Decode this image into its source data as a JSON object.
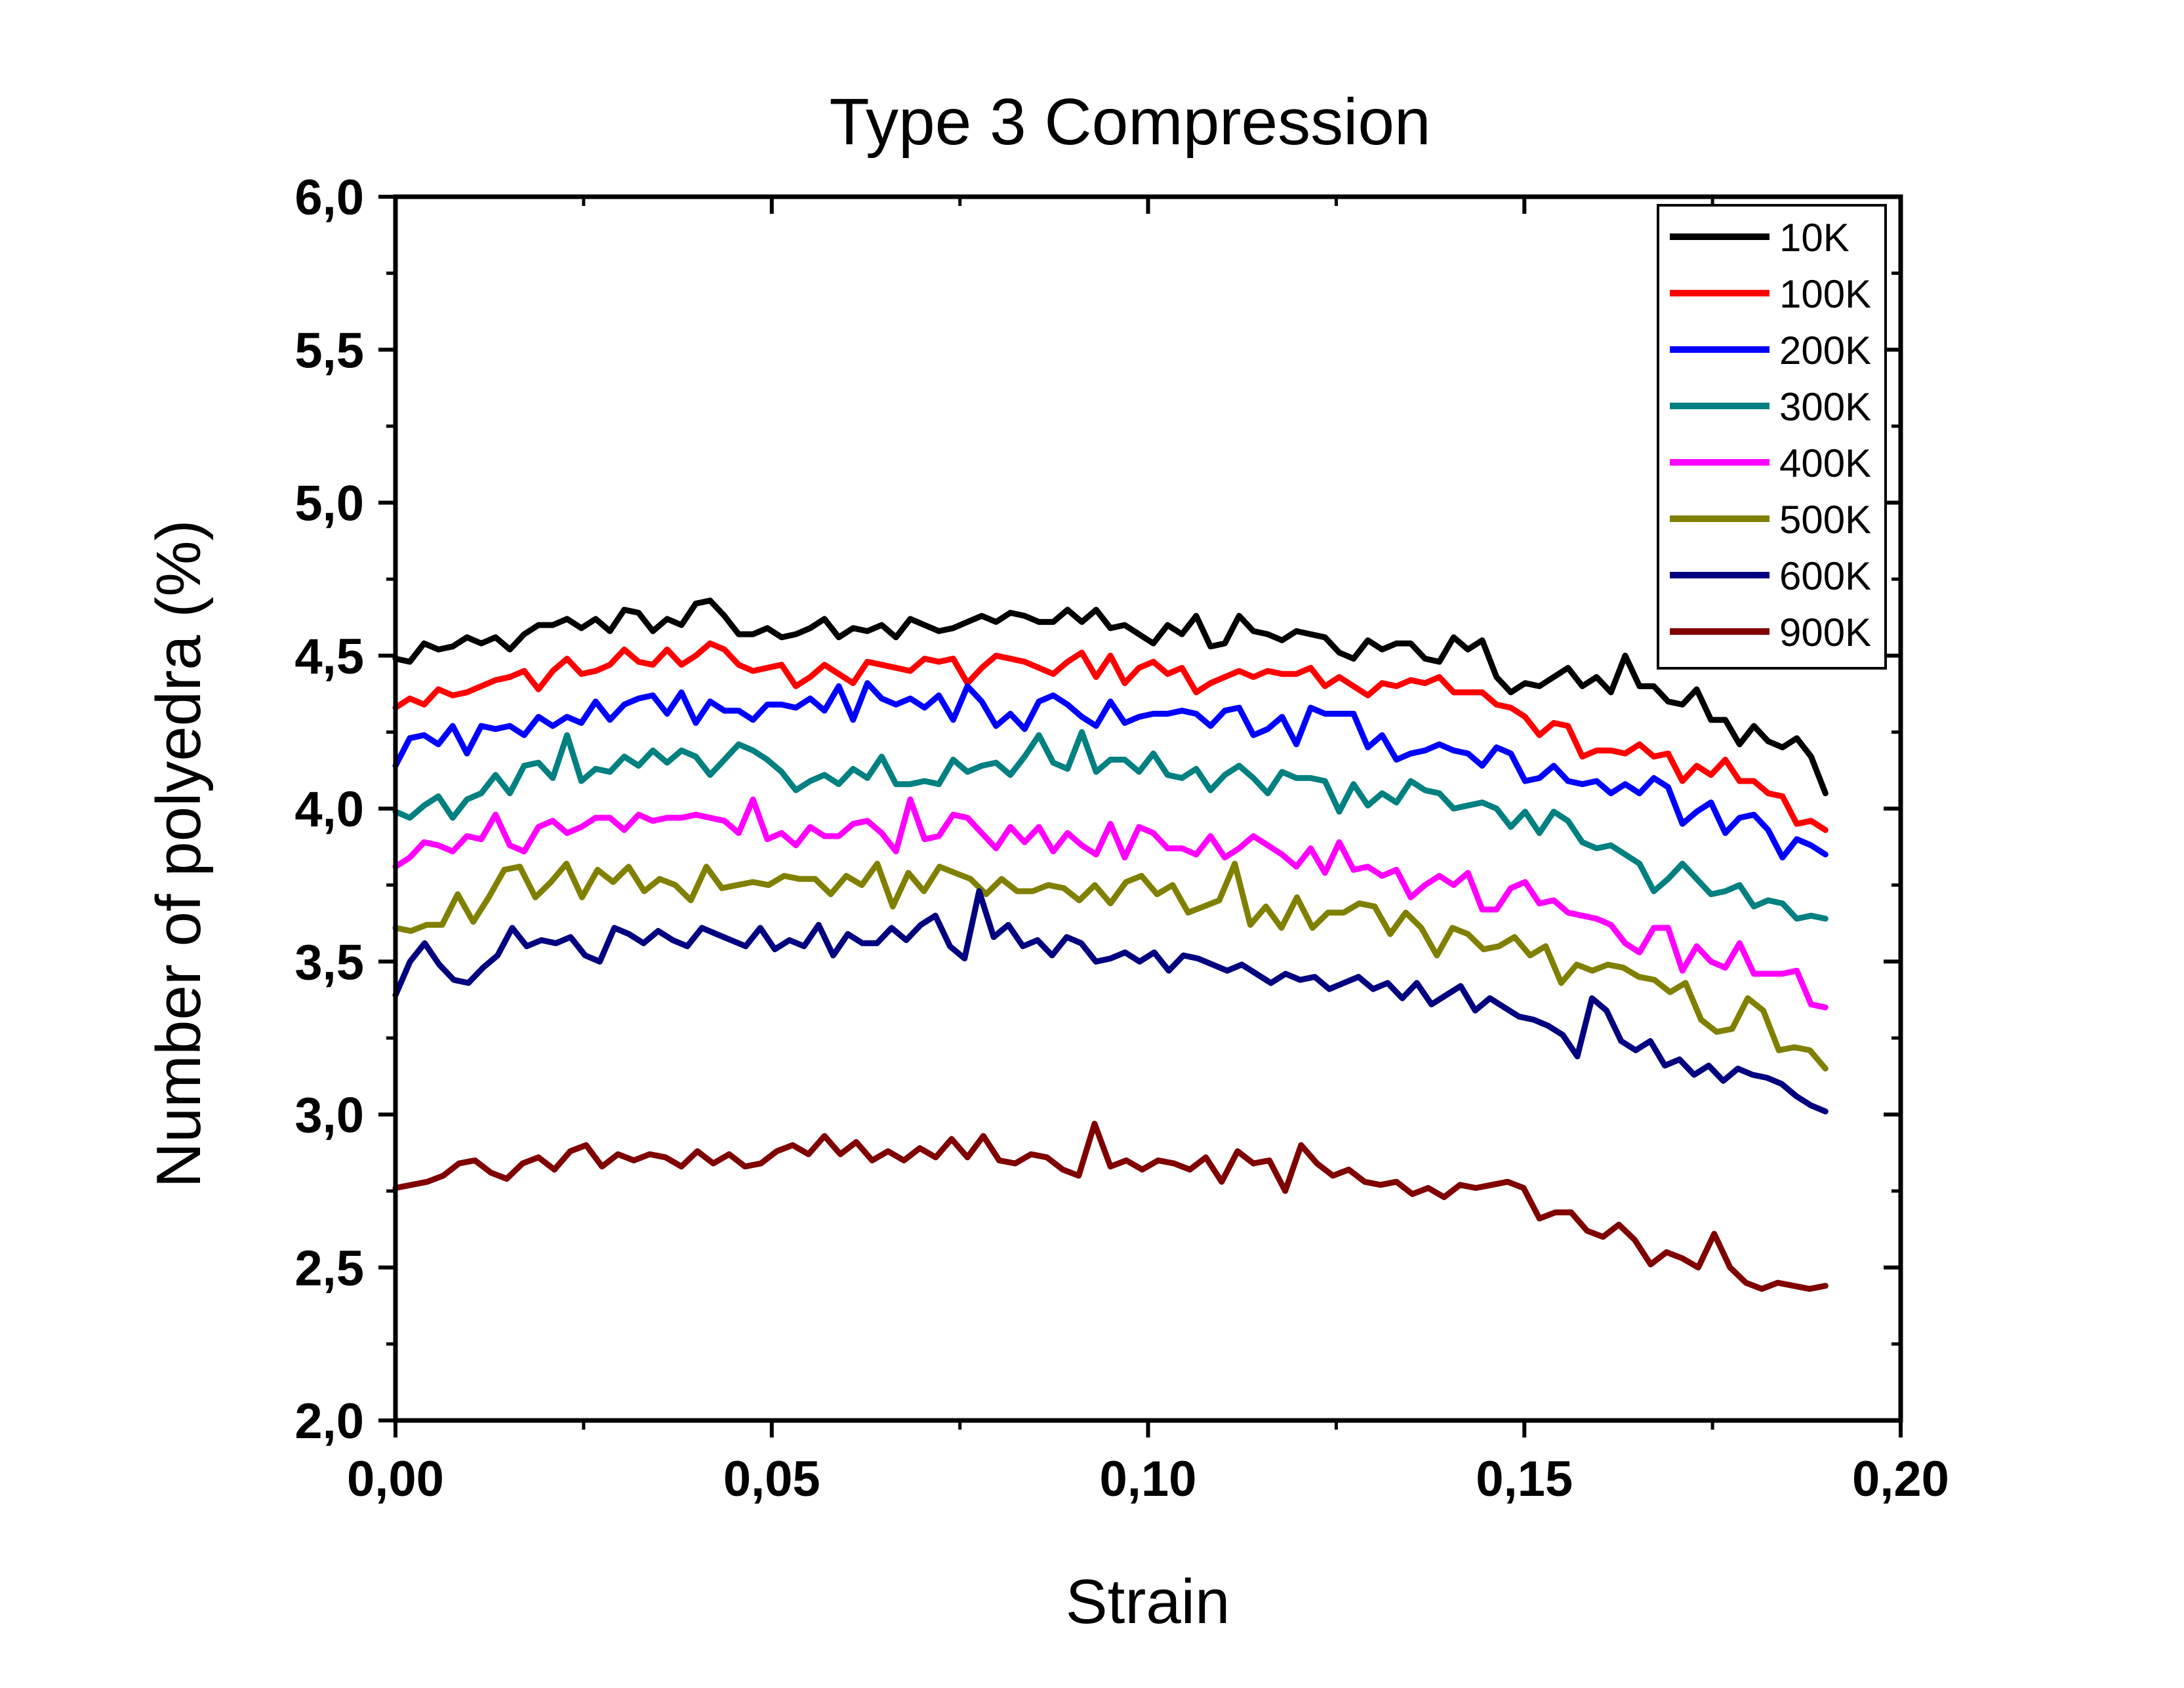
{
  "chart_data": {
    "type": "line",
    "title": "Type 3 Compression",
    "xlabel": "Strain",
    "ylabel": "Number of polyedra (%)",
    "xlim": [
      0,
      0.2
    ],
    "ylim": [
      2.0,
      6.0
    ],
    "xticks": [
      "0,00",
      "0,05",
      "0,10",
      "0,15",
      "0,20"
    ],
    "yticks": [
      "2,0",
      "2,5",
      "3,0",
      "3,5",
      "4,0",
      "4,5",
      "5,0",
      "5,5",
      "6,0"
    ],
    "grid": false,
    "legend_position": "top-right",
    "x_start": 0.0,
    "x_step": 0.001,
    "series": [
      {
        "name": "10K",
        "color": "#000000",
        "values": [
          4.49,
          4.48,
          4.54,
          4.52,
          4.53,
          4.56,
          4.54,
          4.56,
          4.52,
          4.57,
          4.6,
          4.6,
          4.62,
          4.59,
          4.62,
          4.58,
          4.65,
          4.64,
          4.58,
          4.62,
          4.6,
          4.67,
          4.68,
          4.63,
          4.57,
          4.57,
          4.59,
          4.56,
          4.57,
          4.59,
          4.62,
          4.56,
          4.59,
          4.58,
          4.6,
          4.56,
          4.62,
          4.6,
          4.58,
          4.59,
          4.61,
          4.63,
          4.61,
          4.64,
          4.63,
          4.61,
          4.61,
          4.65,
          4.61,
          4.65,
          4.59,
          4.6,
          4.57,
          4.54,
          4.6,
          4.57,
          4.63,
          4.53,
          4.54,
          4.63,
          4.58,
          4.57,
          4.55,
          4.58,
          4.57,
          4.56,
          4.51,
          4.49,
          4.55,
          4.52,
          4.54,
          4.54,
          4.49,
          4.48,
          4.56,
          4.52,
          4.55,
          4.43,
          4.38,
          4.41,
          4.4,
          4.43,
          4.46,
          4.4,
          4.43,
          4.38,
          4.5,
          4.4,
          4.4,
          4.35,
          4.34,
          4.39,
          4.29,
          4.29,
          4.21,
          4.27,
          4.22,
          4.2,
          4.23,
          4.17,
          4.05
        ]
      },
      {
        "name": "100K",
        "color": "#ff0000",
        "values": [
          4.33,
          4.36,
          4.34,
          4.39,
          4.37,
          4.38,
          4.4,
          4.42,
          4.43,
          4.45,
          4.39,
          4.45,
          4.49,
          4.44,
          4.45,
          4.47,
          4.52,
          4.48,
          4.47,
          4.52,
          4.47,
          4.5,
          4.54,
          4.52,
          4.47,
          4.45,
          4.46,
          4.47,
          4.4,
          4.43,
          4.47,
          4.44,
          4.41,
          4.48,
          4.47,
          4.46,
          4.45,
          4.49,
          4.48,
          4.49,
          4.41,
          4.46,
          4.5,
          4.49,
          4.48,
          4.46,
          4.44,
          4.48,
          4.51,
          4.43,
          4.5,
          4.41,
          4.46,
          4.48,
          4.44,
          4.46,
          4.38,
          4.41,
          4.43,
          4.45,
          4.43,
          4.45,
          4.44,
          4.44,
          4.46,
          4.4,
          4.43,
          4.4,
          4.37,
          4.41,
          4.4,
          4.42,
          4.41,
          4.43,
          4.38,
          4.38,
          4.38,
          4.34,
          4.33,
          4.3,
          4.24,
          4.28,
          4.27,
          4.17,
          4.19,
          4.19,
          4.18,
          4.21,
          4.17,
          4.18,
          4.09,
          4.14,
          4.11,
          4.16,
          4.09,
          4.09,
          4.05,
          4.04,
          3.95,
          3.96,
          3.93
        ]
      },
      {
        "name": "200K",
        "color": "#0000ff",
        "values": [
          4.14,
          4.23,
          4.24,
          4.21,
          4.27,
          4.18,
          4.27,
          4.26,
          4.27,
          4.24,
          4.3,
          4.27,
          4.3,
          4.28,
          4.35,
          4.29,
          4.34,
          4.36,
          4.37,
          4.31,
          4.38,
          4.28,
          4.35,
          4.32,
          4.32,
          4.29,
          4.34,
          4.34,
          4.33,
          4.36,
          4.32,
          4.4,
          4.29,
          4.41,
          4.36,
          4.34,
          4.36,
          4.33,
          4.37,
          4.29,
          4.4,
          4.35,
          4.27,
          4.31,
          4.26,
          4.35,
          4.37,
          4.34,
          4.3,
          4.27,
          4.35,
          4.28,
          4.3,
          4.31,
          4.31,
          4.32,
          4.31,
          4.27,
          4.32,
          4.33,
          4.24,
          4.26,
          4.3,
          4.21,
          4.33,
          4.31,
          4.31,
          4.31,
          4.2,
          4.24,
          4.16,
          4.18,
          4.19,
          4.21,
          4.19,
          4.18,
          4.14,
          4.2,
          4.18,
          4.09,
          4.1,
          4.14,
          4.09,
          4.08,
          4.09,
          4.05,
          4.08,
          4.05,
          4.1,
          4.07,
          3.95,
          3.99,
          4.02,
          3.92,
          3.97,
          3.98,
          3.93,
          3.84,
          3.9,
          3.88,
          3.85
        ]
      },
      {
        "name": "300K",
        "color": "#008080",
        "values": [
          3.99,
          3.97,
          4.01,
          4.04,
          3.97,
          4.03,
          4.05,
          4.11,
          4.05,
          4.14,
          4.15,
          4.1,
          4.24,
          4.09,
          4.13,
          4.12,
          4.17,
          4.14,
          4.19,
          4.15,
          4.19,
          4.17,
          4.11,
          4.16,
          4.21,
          4.19,
          4.16,
          4.12,
          4.06,
          4.09,
          4.11,
          4.08,
          4.13,
          4.1,
          4.17,
          4.08,
          4.08,
          4.09,
          4.08,
          4.16,
          4.12,
          4.14,
          4.15,
          4.11,
          4.17,
          4.24,
          4.15,
          4.13,
          4.25,
          4.12,
          4.16,
          4.16,
          4.12,
          4.18,
          4.11,
          4.1,
          4.13,
          4.06,
          4.11,
          4.14,
          4.1,
          4.05,
          4.12,
          4.1,
          4.1,
          4.09,
          3.99,
          4.08,
          4.01,
          4.05,
          4.02,
          4.09,
          4.06,
          4.05,
          4.0,
          4.01,
          4.02,
          4.0,
          3.94,
          3.99,
          3.92,
          3.99,
          3.96,
          3.89,
          3.87,
          3.88,
          3.85,
          3.82,
          3.73,
          3.77,
          3.82,
          3.77,
          3.72,
          3.73,
          3.75,
          3.68,
          3.7,
          3.69,
          3.64,
          3.65,
          3.64
        ]
      },
      {
        "name": "400K",
        "color": "#ff00ff",
        "values": [
          3.81,
          3.84,
          3.89,
          3.88,
          3.86,
          3.91,
          3.9,
          3.98,
          3.88,
          3.86,
          3.94,
          3.96,
          3.92,
          3.94,
          3.97,
          3.97,
          3.93,
          3.98,
          3.96,
          3.97,
          3.97,
          3.98,
          3.97,
          3.96,
          3.92,
          4.03,
          3.9,
          3.92,
          3.88,
          3.94,
          3.91,
          3.91,
          3.95,
          3.96,
          3.92,
          3.86,
          4.03,
          3.9,
          3.91,
          3.98,
          3.97,
          3.92,
          3.87,
          3.94,
          3.89,
          3.94,
          3.86,
          3.92,
          3.88,
          3.85,
          3.95,
          3.84,
          3.94,
          3.92,
          3.87,
          3.87,
          3.85,
          3.91,
          3.84,
          3.87,
          3.91,
          3.88,
          3.85,
          3.81,
          3.87,
          3.79,
          3.89,
          3.8,
          3.81,
          3.78,
          3.8,
          3.71,
          3.75,
          3.78,
          3.75,
          3.79,
          3.67,
          3.67,
          3.74,
          3.76,
          3.69,
          3.7,
          3.66,
          3.65,
          3.64,
          3.62,
          3.56,
          3.53,
          3.61,
          3.61,
          3.47,
          3.55,
          3.5,
          3.48,
          3.56,
          3.46,
          3.46,
          3.46,
          3.47,
          3.36,
          3.35
        ]
      },
      {
        "name": "500K",
        "color": "#808000",
        "values": [
          3.61,
          3.6,
          3.62,
          3.62,
          3.72,
          3.63,
          3.71,
          3.8,
          3.81,
          3.71,
          3.76,
          3.82,
          3.71,
          3.8,
          3.76,
          3.81,
          3.73,
          3.77,
          3.75,
          3.7,
          3.81,
          3.74,
          3.75,
          3.76,
          3.75,
          3.78,
          3.77,
          3.77,
          3.72,
          3.78,
          3.75,
          3.82,
          3.68,
          3.79,
          3.73,
          3.81,
          3.79,
          3.77,
          3.72,
          3.77,
          3.73,
          3.73,
          3.75,
          3.74,
          3.7,
          3.75,
          3.69,
          3.76,
          3.78,
          3.72,
          3.75,
          3.66,
          3.68,
          3.7,
          3.82,
          3.62,
          3.68,
          3.61,
          3.71,
          3.61,
          3.66,
          3.66,
          3.69,
          3.68,
          3.59,
          3.66,
          3.61,
          3.52,
          3.61,
          3.59,
          3.54,
          3.55,
          3.58,
          3.52,
          3.55,
          3.43,
          3.49,
          3.47,
          3.49,
          3.48,
          3.45,
          3.44,
          3.4,
          3.43,
          3.31,
          3.27,
          3.28,
          3.38,
          3.34,
          3.21,
          3.22,
          3.21,
          3.15
        ]
      },
      {
        "name": "600K",
        "color": "#000080",
        "values": [
          3.39,
          3.5,
          3.56,
          3.49,
          3.44,
          3.43,
          3.48,
          3.52,
          3.61,
          3.55,
          3.57,
          3.56,
          3.58,
          3.52,
          3.5,
          3.61,
          3.59,
          3.56,
          3.6,
          3.57,
          3.55,
          3.61,
          3.59,
          3.57,
          3.55,
          3.61,
          3.54,
          3.57,
          3.55,
          3.62,
          3.52,
          3.59,
          3.56,
          3.56,
          3.61,
          3.57,
          3.62,
          3.65,
          3.55,
          3.51,
          3.73,
          3.58,
          3.62,
          3.55,
          3.57,
          3.52,
          3.58,
          3.56,
          3.5,
          3.51,
          3.53,
          3.5,
          3.53,
          3.47,
          3.52,
          3.51,
          3.49,
          3.47,
          3.49,
          3.46,
          3.43,
          3.46,
          3.44,
          3.45,
          3.41,
          3.43,
          3.45,
          3.41,
          3.43,
          3.38,
          3.43,
          3.36,
          3.39,
          3.42,
          3.34,
          3.38,
          3.35,
          3.32,
          3.31,
          3.29,
          3.26,
          3.19,
          3.38,
          3.34,
          3.24,
          3.21,
          3.24,
          3.16,
          3.18,
          3.13,
          3.16,
          3.11,
          3.15,
          3.13,
          3.12,
          3.1,
          3.06,
          3.03,
          3.01
        ]
      },
      {
        "name": "900K",
        "color": "#800000",
        "values": [
          2.76,
          2.77,
          2.78,
          2.8,
          2.84,
          2.85,
          2.81,
          2.79,
          2.84,
          2.86,
          2.82,
          2.88,
          2.9,
          2.83,
          2.87,
          2.85,
          2.87,
          2.86,
          2.83,
          2.88,
          2.84,
          2.87,
          2.83,
          2.84,
          2.88,
          2.9,
          2.87,
          2.93,
          2.87,
          2.91,
          2.85,
          2.88,
          2.85,
          2.89,
          2.86,
          2.92,
          2.86,
          2.93,
          2.85,
          2.84,
          2.87,
          2.86,
          2.82,
          2.8,
          2.97,
          2.83,
          2.85,
          2.82,
          2.85,
          2.84,
          2.82,
          2.86,
          2.78,
          2.88,
          2.84,
          2.85,
          2.75,
          2.9,
          2.84,
          2.8,
          2.82,
          2.78,
          2.77,
          2.78,
          2.74,
          2.76,
          2.73,
          2.77,
          2.76,
          2.77,
          2.78,
          2.76,
          2.66,
          2.68,
          2.68,
          2.62,
          2.6,
          2.64,
          2.59,
          2.51,
          2.55,
          2.53,
          2.5,
          2.61,
          2.5,
          2.45,
          2.43,
          2.45,
          2.44,
          2.43,
          2.44
        ]
      }
    ]
  }
}
